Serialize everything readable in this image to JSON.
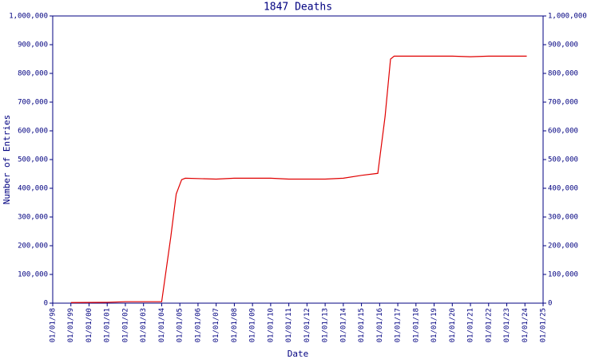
{
  "chart_data": {
    "type": "line",
    "title": "1847 Deaths",
    "x_label": "Date",
    "y_label": "Number of Entries",
    "color": "#e00000",
    "axis_color": "#000080",
    "xlim": [
      1998,
      2025
    ],
    "xticks": [
      {
        "value": 1998,
        "label": "01/01/98"
      },
      {
        "value": 1999,
        "label": "01/01/99"
      },
      {
        "value": 2000,
        "label": "01/01/00"
      },
      {
        "value": 2001,
        "label": "01/01/01"
      },
      {
        "value": 2002,
        "label": "01/01/02"
      },
      {
        "value": 2003,
        "label": "01/01/03"
      },
      {
        "value": 2004,
        "label": "01/01/04"
      },
      {
        "value": 2005,
        "label": "01/01/05"
      },
      {
        "value": 2006,
        "label": "01/01/06"
      },
      {
        "value": 2007,
        "label": "01/01/07"
      },
      {
        "value": 2008,
        "label": "01/01/08"
      },
      {
        "value": 2009,
        "label": "01/01/09"
      },
      {
        "value": 2010,
        "label": "01/01/10"
      },
      {
        "value": 2011,
        "label": "01/01/11"
      },
      {
        "value": 2012,
        "label": "01/01/12"
      },
      {
        "value": 2013,
        "label": "01/01/13"
      },
      {
        "value": 2014,
        "label": "01/01/14"
      },
      {
        "value": 2015,
        "label": "01/01/15"
      },
      {
        "value": 2016,
        "label": "01/01/16"
      },
      {
        "value": 2017,
        "label": "01/01/17"
      },
      {
        "value": 2018,
        "label": "01/01/18"
      },
      {
        "value": 2019,
        "label": "01/01/19"
      },
      {
        "value": 2020,
        "label": "01/01/20"
      },
      {
        "value": 2021,
        "label": "01/01/21"
      },
      {
        "value": 2022,
        "label": "01/01/22"
      },
      {
        "value": 2023,
        "label": "01/01/23"
      },
      {
        "value": 2024,
        "label": "01/01/24"
      },
      {
        "value": 2025,
        "label": "01/01/25"
      }
    ],
    "ylim": [
      0,
      1000000
    ],
    "yticks": [
      0,
      {
        "value": 100000,
        "label": "100,000"
      },
      {
        "value": 200000,
        "label": "200,000"
      },
      {
        "value": 300000,
        "label": "300,000"
      },
      {
        "value": 400000,
        "label": "400,000"
      },
      {
        "value": 500000,
        "label": "500,000"
      },
      {
        "value": 600000,
        "label": "600,000"
      },
      {
        "value": 700000,
        "label": "700,000"
      },
      {
        "value": 800000,
        "label": "800,000"
      },
      {
        "value": 900000,
        "label": "900,000"
      },
      {
        "value": 1000000,
        "label": "1,000,000"
      }
    ],
    "x": [
      1999,
      2001,
      2002,
      2004,
      2004.5,
      2004.8,
      2005.1,
      2005.3,
      2007,
      2008,
      2010,
      2011,
      2013,
      2014,
      2015,
      2015.9,
      2016.3,
      2016.6,
      2016.8,
      2020,
      2021,
      2022,
      2024.1
    ],
    "values": [
      2000,
      3000,
      5000,
      5000,
      230000,
      380000,
      430000,
      435000,
      432000,
      435000,
      435000,
      432000,
      432000,
      435000,
      445000,
      452000,
      650000,
      850000,
      860000,
      860000,
      858000,
      860000,
      860000
    ]
  }
}
